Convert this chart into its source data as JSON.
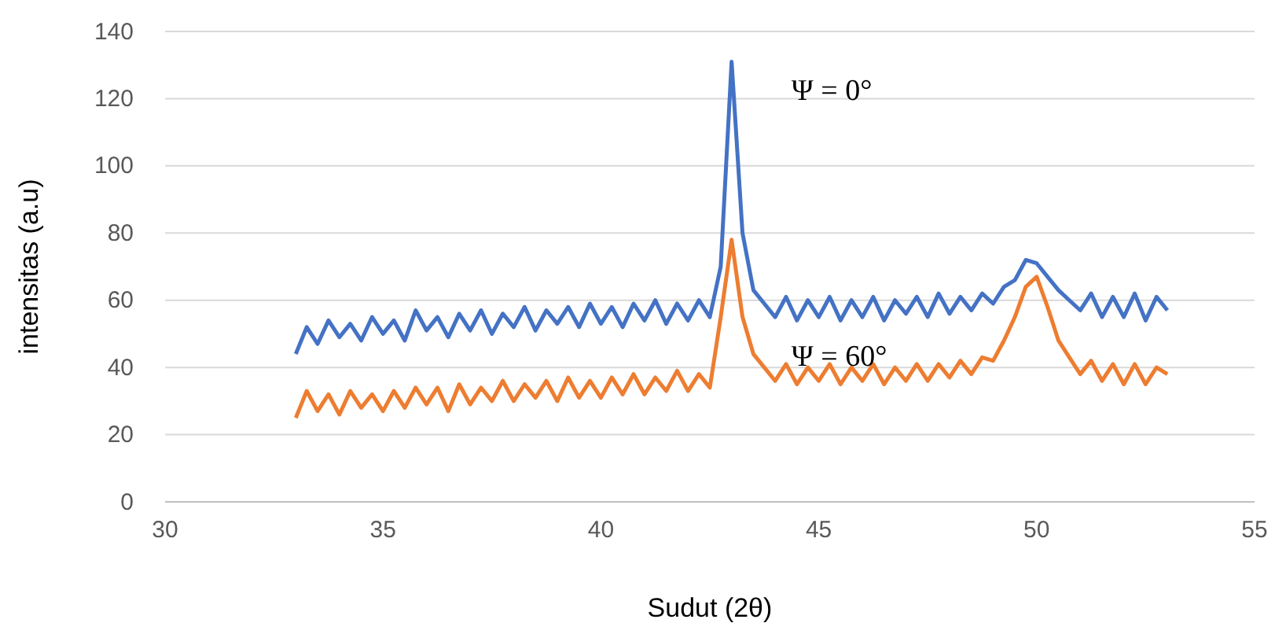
{
  "chart_data": {
    "type": "line",
    "xlabel": "Sudut (2θ)",
    "ylabel": "intensitas (a.u)",
    "x": [
      33,
      33.25,
      33.5,
      33.75,
      34,
      34.25,
      34.5,
      34.75,
      35,
      35.25,
      35.5,
      35.75,
      36,
      36.25,
      36.5,
      36.75,
      37,
      37.25,
      37.5,
      37.75,
      38,
      38.25,
      38.5,
      38.75,
      39,
      39.25,
      39.5,
      39.75,
      40,
      40.25,
      40.5,
      40.75,
      41,
      41.25,
      41.5,
      41.75,
      42,
      42.25,
      42.5,
      42.75,
      43,
      43.25,
      43.5,
      43.75,
      44,
      44.25,
      44.5,
      44.75,
      45,
      45.25,
      45.5,
      45.75,
      46,
      46.25,
      46.5,
      46.75,
      47,
      47.25,
      47.5,
      47.75,
      48,
      48.25,
      48.5,
      48.75,
      49,
      49.25,
      49.5,
      49.75,
      50,
      50.25,
      50.5,
      50.75,
      51,
      51.25,
      51.5,
      51.75,
      52,
      52.25,
      52.5,
      52.75,
      53
    ],
    "series": [
      {
        "name": "Ψ = 0°",
        "color": "#4472c4",
        "values": [
          44,
          52,
          47,
          54,
          49,
          53,
          48,
          55,
          50,
          54,
          48,
          57,
          51,
          55,
          49,
          56,
          51,
          57,
          50,
          56,
          52,
          58,
          51,
          57,
          53,
          58,
          52,
          59,
          53,
          58,
          52,
          59,
          54,
          60,
          53,
          59,
          54,
          60,
          55,
          70,
          131,
          80,
          63,
          59,
          55,
          61,
          54,
          60,
          55,
          61,
          54,
          60,
          55,
          61,
          54,
          60,
          56,
          61,
          55,
          62,
          56,
          61,
          57,
          62,
          59,
          64,
          66,
          72,
          71,
          67,
          63,
          60,
          57,
          62,
          55,
          61,
          55,
          62,
          54,
          61,
          57
        ]
      },
      {
        "name": "Ψ = 60°",
        "color": "#ed7d31",
        "values": [
          25,
          33,
          27,
          32,
          26,
          33,
          28,
          32,
          27,
          33,
          28,
          34,
          29,
          34,
          27,
          35,
          29,
          34,
          30,
          36,
          30,
          35,
          31,
          36,
          30,
          37,
          31,
          36,
          31,
          37,
          32,
          38,
          32,
          37,
          33,
          39,
          33,
          38,
          34,
          55,
          78,
          55,
          44,
          40,
          36,
          41,
          35,
          40,
          36,
          41,
          35,
          40,
          36,
          41,
          35,
          40,
          36,
          41,
          36,
          41,
          37,
          42,
          38,
          43,
          42,
          48,
          55,
          64,
          67,
          58,
          48,
          43,
          38,
          42,
          36,
          41,
          35,
          41,
          35,
          40,
          38
        ]
      }
    ],
    "xlim": [
      30,
      55
    ],
    "xticks": [
      30,
      35,
      40,
      45,
      50,
      55
    ],
    "ylim": [
      0,
      140
    ],
    "yticks": [
      0,
      20,
      40,
      60,
      80,
      100,
      120,
      140
    ],
    "grid": "y",
    "marker": "none",
    "line_style": "solid"
  }
}
